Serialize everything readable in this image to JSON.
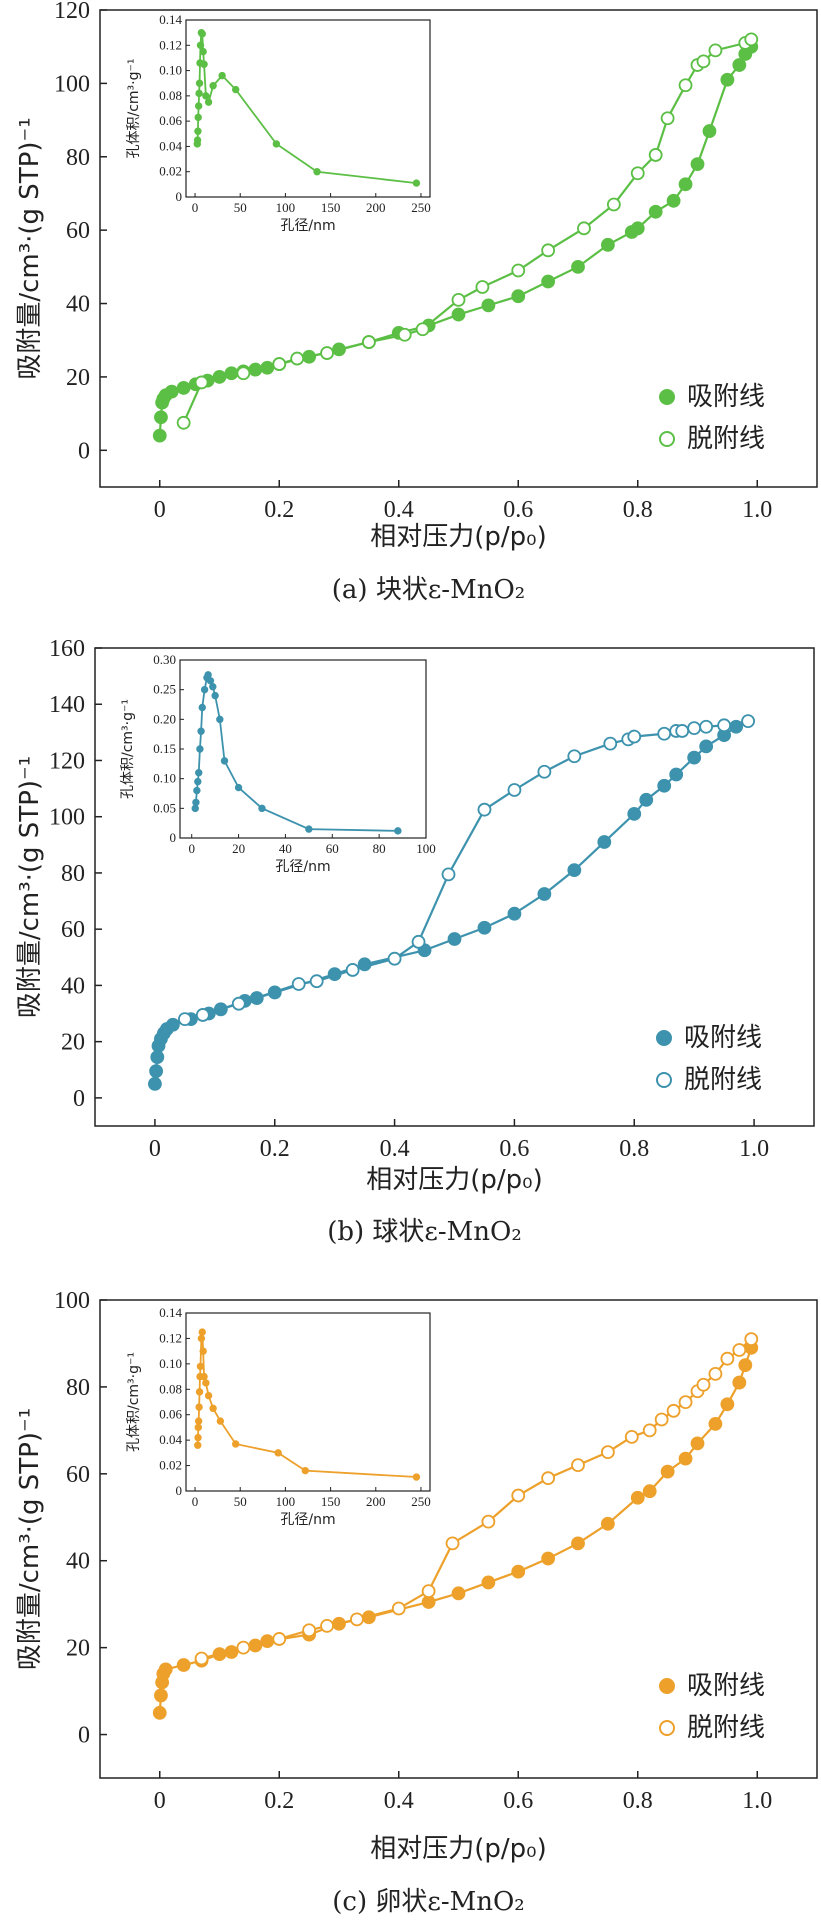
{
  "chart_data": [
    {
      "type": "line",
      "color": "#5cbf45",
      "caption": "(a) 块状ε-MnO₂",
      "xlabel": "相对压力(p/p₀)",
      "ylabel": "吸附量/cm³·(g STP)⁻¹",
      "xlim": [
        -0.1,
        1.1
      ],
      "ylim": [
        -10,
        120
      ],
      "xticks": [
        0,
        0.2,
        0.4,
        0.6,
        0.8,
        1.0
      ],
      "xtick_labels": [
        "0",
        "0.2",
        "0.4",
        "0.6",
        "0.8",
        "1.0"
      ],
      "yticks": [
        0,
        20,
        40,
        60,
        80,
        100,
        120
      ],
      "ytick_labels": [
        "0",
        "20",
        "40",
        "60",
        "80",
        "100",
        "120"
      ],
      "legend": {
        "position": "bottom-right",
        "entries": [
          "吸附线",
          "脱附线"
        ]
      },
      "series": [
        {
          "name": "吸附线",
          "marker": "filled",
          "x": [
            0.0,
            0.002,
            0.004,
            0.006,
            0.01,
            0.02,
            0.04,
            0.06,
            0.08,
            0.1,
            0.12,
            0.14,
            0.16,
            0.18,
            0.2,
            0.25,
            0.3,
            0.35,
            0.4,
            0.45,
            0.5,
            0.55,
            0.6,
            0.65,
            0.7,
            0.75,
            0.79,
            0.8,
            0.83,
            0.86,
            0.88,
            0.9,
            0.92,
            0.95,
            0.97,
            0.98,
            0.99
          ],
          "y": [
            4,
            9,
            13,
            14,
            15,
            16,
            17,
            18,
            19,
            20,
            21,
            21.5,
            22,
            22.5,
            23.5,
            25.5,
            27.5,
            29.5,
            32,
            34,
            37,
            39.5,
            42,
            46,
            50,
            56,
            59.5,
            60.5,
            65,
            68,
            72.5,
            78,
            87,
            101,
            105,
            108,
            110
          ]
        },
        {
          "name": "脱附线",
          "marker": "open",
          "x": [
            0.04,
            0.07,
            0.14,
            0.2,
            0.23,
            0.28,
            0.35,
            0.41,
            0.44,
            0.5,
            0.54,
            0.6,
            0.65,
            0.71,
            0.76,
            0.8,
            0.83,
            0.85,
            0.88,
            0.9,
            0.91,
            0.93,
            0.98,
            0.99
          ],
          "y": [
            7.5,
            18.5,
            21,
            23.5,
            25,
            26.5,
            29.5,
            31.5,
            33,
            41,
            44.5,
            49,
            54.5,
            60.5,
            67,
            75.5,
            80.5,
            90.5,
            99.5,
            105,
            106,
            109,
            111,
            112
          ]
        }
      ],
      "inset": {
        "xlabel": "孔径/nm",
        "ylabel": "孔体积/cm³·g⁻¹",
        "xlim": [
          -10,
          260
        ],
        "ylim": [
          0,
          0.14
        ],
        "xticks": [
          0,
          50,
          100,
          150,
          200,
          250
        ],
        "xtick_labels": [
          "0",
          "50",
          "100",
          "150",
          "200",
          "250"
        ],
        "yticks": [
          0,
          0.02,
          0.04,
          0.06,
          0.08,
          0.1,
          0.12,
          0.14
        ],
        "ytick_labels": [
          "0",
          "0.02",
          "0.04",
          "0.06",
          "0.08",
          "0.10",
          "0.12",
          "0.14"
        ],
        "x": [
          2.5,
          2.8,
          3.2,
          3.5,
          4,
          4.5,
          5,
          5.5,
          6,
          7,
          8,
          9,
          10,
          12,
          15,
          20,
          30,
          45,
          90,
          135,
          245
        ],
        "y": [
          0.042,
          0.045,
          0.052,
          0.063,
          0.072,
          0.082,
          0.09,
          0.106,
          0.12,
          0.13,
          0.129,
          0.115,
          0.105,
          0.08,
          0.075,
          0.088,
          0.096,
          0.085,
          0.042,
          0.02,
          0.011
        ]
      }
    },
    {
      "type": "line",
      "color": "#3d92ad",
      "caption": "(b) 球状ε-MnO₂",
      "xlabel": "相对压力(p/p₀)",
      "ylabel": "吸附量/cm³·(g STP)⁻¹",
      "xlim": [
        -0.1,
        1.1
      ],
      "ylim": [
        -10,
        160
      ],
      "xticks": [
        0,
        0.2,
        0.4,
        0.6,
        0.8,
        1.0
      ],
      "xtick_labels": [
        "0",
        "0.2",
        "0.4",
        "0.6",
        "0.8",
        "1.0"
      ],
      "yticks": [
        0,
        20,
        40,
        60,
        80,
        100,
        120,
        140,
        160
      ],
      "ytick_labels": [
        "0",
        "20",
        "40",
        "60",
        "80",
        "100",
        "120",
        "140",
        "160"
      ],
      "legend": {
        "position": "bottom-right",
        "entries": [
          "吸附线",
          "脱附线"
        ]
      },
      "series": [
        {
          "name": "吸附线",
          "marker": "filled",
          "x": [
            0.0,
            0.002,
            0.004,
            0.006,
            0.01,
            0.015,
            0.02,
            0.03,
            0.06,
            0.09,
            0.11,
            0.15,
            0.17,
            0.2,
            0.3,
            0.35,
            0.45,
            0.5,
            0.55,
            0.6,
            0.65,
            0.7,
            0.75,
            0.8,
            0.82,
            0.85,
            0.87,
            0.9,
            0.92,
            0.95,
            0.97
          ],
          "y": [
            5,
            9.5,
            14.5,
            18.5,
            21,
            23,
            24.5,
            26,
            28,
            30,
            31.5,
            34.5,
            35.5,
            37.5,
            44,
            47.5,
            52.5,
            56.5,
            60.5,
            65.5,
            72.5,
            81,
            91,
            101,
            106,
            111,
            115,
            121,
            125,
            129,
            132
          ]
        },
        {
          "name": "脱附线",
          "marker": "open",
          "x": [
            0.05,
            0.08,
            0.14,
            0.24,
            0.27,
            0.33,
            0.4,
            0.44,
            0.49,
            0.55,
            0.6,
            0.65,
            0.7,
            0.76,
            0.79,
            0.8,
            0.85,
            0.87,
            0.88,
            0.9,
            0.92,
            0.95,
            0.99
          ],
          "y": [
            28,
            29.5,
            33.5,
            40.5,
            41.5,
            45.5,
            49.5,
            55.5,
            79.5,
            102.5,
            109.5,
            116,
            121.5,
            126,
            127.5,
            128.5,
            129.5,
            130.5,
            130.5,
            131.5,
            132,
            132.5,
            134
          ]
        }
      ],
      "inset": {
        "xlabel": "孔径/nm",
        "ylabel": "孔体积/cm³·g⁻¹",
        "xlim": [
          -5,
          100
        ],
        "ylim": [
          0,
          0.3
        ],
        "xticks": [
          0,
          20,
          40,
          60,
          80,
          100
        ],
        "xtick_labels": [
          "0",
          "20",
          "40",
          "60",
          "80",
          "100"
        ],
        "yticks": [
          0,
          0.05,
          0.1,
          0.15,
          0.2,
          0.25,
          0.3
        ],
        "ytick_labels": [
          "0",
          "0.05",
          "0.10",
          "0.15",
          "0.20",
          "0.25",
          "0.30"
        ],
        "x": [
          1.5,
          1.8,
          2.2,
          2.6,
          3,
          3.5,
          4,
          4.5,
          5.5,
          6.5,
          7,
          8,
          9,
          10,
          12,
          14,
          20,
          30,
          50,
          88
        ],
        "y": [
          0.05,
          0.06,
          0.08,
          0.095,
          0.11,
          0.15,
          0.18,
          0.22,
          0.25,
          0.27,
          0.275,
          0.265,
          0.255,
          0.24,
          0.2,
          0.13,
          0.085,
          0.05,
          0.015,
          0.012
        ]
      }
    },
    {
      "type": "line",
      "color": "#eda02a",
      "caption": "(c) 卵状ε-MnO₂",
      "xlabel": "相对压力(p/p₀)",
      "ylabel": "吸附量/cm³·(g STP)⁻¹",
      "xlim": [
        -0.1,
        1.1
      ],
      "ylim": [
        -10,
        100
      ],
      "xticks": [
        0,
        0.2,
        0.4,
        0.6,
        0.8,
        1.0
      ],
      "xtick_labels": [
        "0",
        "0.2",
        "0.4",
        "0.6",
        "0.8",
        "1.0"
      ],
      "yticks": [
        0,
        20,
        40,
        60,
        80,
        100
      ],
      "ytick_labels": [
        "0",
        "20",
        "40",
        "60",
        "80",
        "100"
      ],
      "legend": {
        "position": "bottom-right",
        "entries": [
          "吸附线",
          "脱附线"
        ]
      },
      "series": [
        {
          "name": "吸附线",
          "marker": "filled",
          "x": [
            0.0,
            0.002,
            0.004,
            0.006,
            0.01,
            0.04,
            0.07,
            0.1,
            0.12,
            0.16,
            0.18,
            0.25,
            0.3,
            0.35,
            0.45,
            0.5,
            0.55,
            0.6,
            0.65,
            0.7,
            0.75,
            0.8,
            0.82,
            0.85,
            0.88,
            0.9,
            0.93,
            0.95,
            0.97,
            0.98,
            0.99
          ],
          "y": [
            5,
            9,
            12,
            14,
            15,
            16,
            17,
            18.5,
            19,
            20.5,
            21.5,
            23,
            25.5,
            27,
            30.5,
            32.5,
            35,
            37.5,
            40.5,
            44,
            48.5,
            54.5,
            56,
            60.5,
            63.5,
            67,
            71.5,
            76,
            81,
            85,
            89
          ]
        },
        {
          "name": "脱附线",
          "marker": "open",
          "x": [
            0.07,
            0.14,
            0.2,
            0.25,
            0.28,
            0.33,
            0.4,
            0.45,
            0.49,
            0.55,
            0.6,
            0.65,
            0.7,
            0.75,
            0.79,
            0.82,
            0.84,
            0.86,
            0.88,
            0.9,
            0.91,
            0.93,
            0.95,
            0.97,
            0.99
          ],
          "y": [
            17.5,
            20,
            22,
            24,
            25,
            26.5,
            29,
            33,
            44,
            49,
            55,
            59,
            62,
            65,
            68.5,
            70,
            72.5,
            74.5,
            76.5,
            79,
            80.5,
            83,
            86.5,
            88.5,
            91
          ]
        }
      ],
      "inset": {
        "xlabel": "孔径/nm",
        "ylabel": "孔体积/cm³·g⁻¹",
        "xlim": [
          -10,
          260
        ],
        "ylim": [
          0,
          0.14
        ],
        "xticks": [
          0,
          50,
          100,
          150,
          200,
          250
        ],
        "xtick_labels": [
          "0",
          "50",
          "100",
          "150",
          "200",
          "250"
        ],
        "yticks": [
          0,
          0.02,
          0.04,
          0.06,
          0.08,
          0.1,
          0.12,
          0.14
        ],
        "ytick_labels": [
          "0",
          "0.02",
          "0.04",
          "0.06",
          "0.08",
          "0.10",
          "0.12",
          "0.14"
        ],
        "x": [
          3,
          3.3,
          3.6,
          4,
          4.5,
          5,
          5.5,
          6,
          7,
          8,
          9,
          10,
          12,
          15,
          20,
          28,
          45,
          92,
          122,
          245
        ],
        "y": [
          0.036,
          0.042,
          0.05,
          0.055,
          0.066,
          0.078,
          0.09,
          0.098,
          0.12,
          0.125,
          0.11,
          0.09,
          0.085,
          0.075,
          0.065,
          0.055,
          0.037,
          0.03,
          0.016,
          0.011
        ]
      }
    }
  ]
}
